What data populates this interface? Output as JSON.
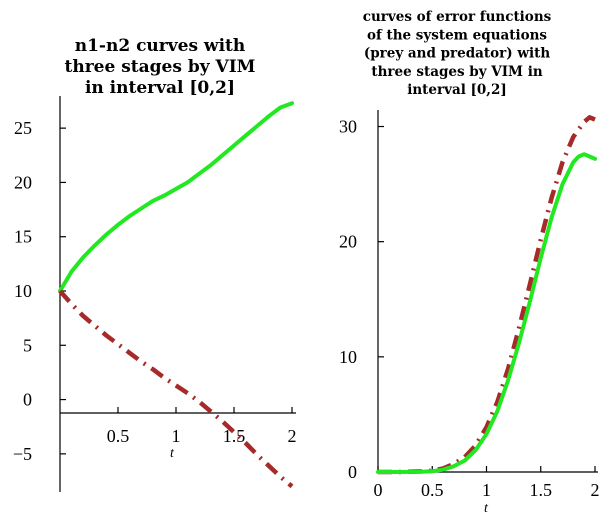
{
  "chart_data": [
    {
      "type": "line",
      "title": [
        "n1-n2 curves with",
        "three stages by VIM",
        "in interval [0,2]"
      ],
      "xlabel": "t",
      "ylabel": "",
      "xlim": [
        0,
        2
      ],
      "ylim": [
        -7.5,
        27.5
      ],
      "xticks": [
        0.5,
        1,
        1.5,
        2
      ],
      "xtick_labels": [
        "0.5",
        "1",
        "1.5",
        "2"
      ],
      "yticks": [
        -5,
        0,
        5,
        10,
        15,
        20,
        25
      ],
      "ytick_labels": [
        "−5",
        "0",
        "5",
        "10",
        "15",
        "20",
        "25"
      ],
      "grid": false,
      "series": [
        {
          "color": "#22e822",
          "style": "solid",
          "x": [
            0,
            0.1,
            0.2,
            0.3,
            0.4,
            0.5,
            0.6,
            0.7,
            0.8,
            0.9,
            1.0,
            1.1,
            1.2,
            1.3,
            1.4,
            1.5,
            1.6,
            1.7,
            1.8,
            1.9,
            2.0
          ],
          "y": [
            10,
            11.8,
            13.1,
            14.2,
            15.2,
            16.1,
            16.9,
            17.6,
            18.3,
            18.8,
            19.4,
            20.0,
            20.8,
            21.6,
            22.5,
            23.4,
            24.3,
            25.2,
            26.1,
            26.9,
            27.3
          ]
        },
        {
          "color": "#a62a2a",
          "style": "dashdot",
          "x": [
            0,
            0.1,
            0.2,
            0.3,
            0.4,
            0.5,
            0.6,
            0.7,
            0.8,
            0.9,
            1.0,
            1.1,
            1.2,
            1.3,
            1.4,
            1.5,
            1.6,
            1.7,
            1.8,
            1.9,
            2.0
          ],
          "y": [
            10,
            8.8,
            7.7,
            6.8,
            5.9,
            5.1,
            4.3,
            3.5,
            2.8,
            2.0,
            1.3,
            0.6,
            -0.2,
            -1.1,
            -2.0,
            -3.0,
            -4.0,
            -5.1,
            -6.1,
            -7.1,
            -8.0
          ]
        }
      ]
    },
    {
      "type": "line",
      "title": [
        "curves of error functions",
        "of the system equations",
        "(prey and predator) with",
        "three stages by VIM in",
        "interval [0,2]"
      ],
      "xlabel": "t",
      "ylabel": "",
      "xlim": [
        0,
        2
      ],
      "ylim": [
        0,
        31
      ],
      "xticks": [
        0,
        0.5,
        1,
        1.5,
        2
      ],
      "xtick_labels": [
        "0",
        "0.5",
        "1",
        "1.5",
        "2"
      ],
      "yticks": [
        0,
        10,
        20,
        30
      ],
      "ytick_labels": [
        "0",
        "10",
        "20",
        "30"
      ],
      "grid": false,
      "series": [
        {
          "color": "#a62a2a",
          "style": "dashdot",
          "x": [
            0,
            0.2,
            0.4,
            0.5,
            0.6,
            0.7,
            0.8,
            0.9,
            1.0,
            1.1,
            1.2,
            1.3,
            1.4,
            1.5,
            1.6,
            1.7,
            1.8,
            1.9,
            1.95,
            2.0
          ],
          "y": [
            0,
            0,
            0.05,
            0.1,
            0.3,
            0.7,
            1.3,
            2.3,
            3.9,
            6.1,
            9.0,
            12.5,
            16.3,
            20.2,
            23.8,
            26.9,
            29.1,
            30.4,
            30.8,
            30.6
          ]
        },
        {
          "color": "#22e822",
          "style": "solid",
          "x": [
            0,
            0.2,
            0.4,
            0.5,
            0.6,
            0.7,
            0.8,
            0.9,
            1.0,
            1.1,
            1.2,
            1.3,
            1.4,
            1.5,
            1.6,
            1.7,
            1.8,
            1.85,
            1.9,
            1.95,
            2.0
          ],
          "y": [
            0,
            0,
            0.03,
            0.07,
            0.2,
            0.5,
            1.0,
            1.9,
            3.3,
            5.3,
            8.0,
            11.2,
            14.8,
            18.6,
            22.1,
            25.0,
            26.9,
            27.4,
            27.6,
            27.4,
            27.2
          ]
        }
      ]
    }
  ]
}
